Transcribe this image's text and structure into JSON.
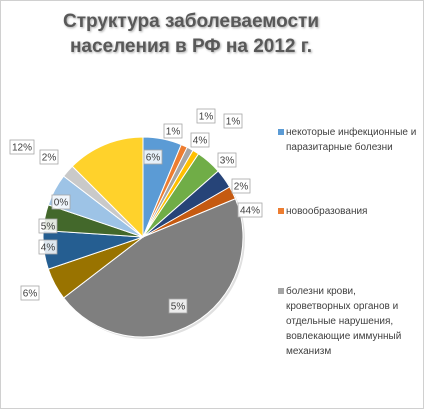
{
  "chart_data": {
    "type": "pie",
    "title_lines": [
      "Структура заболеваемости",
      "населения в РФ на 2012 г."
    ],
    "slices": [
      {
        "label": "6%",
        "value": 6,
        "color": "#5b9bd5"
      },
      {
        "label": "1%",
        "value": 1,
        "color": "#ed7d31"
      },
      {
        "label": "1%",
        "value": 1,
        "color": "#a5a5a5"
      },
      {
        "label": "1%",
        "value": 1,
        "color": "#ffc000"
      },
      {
        "label": "4%",
        "value": 4,
        "color": "#70ad47"
      },
      {
        "label": "3%",
        "value": 3,
        "color": "#264478"
      },
      {
        "label": "2%",
        "value": 2,
        "color": "#c55a11"
      },
      {
        "label": "44%",
        "value": 44,
        "color": "#7f7f7f"
      },
      {
        "label": "5%",
        "value": 5,
        "color": "#997300"
      },
      {
        "label": "6%",
        "value": 6,
        "color": "#255e91"
      },
      {
        "label": "4%",
        "value": 4,
        "color": "#43682b"
      },
      {
        "label": "5%",
        "value": 5,
        "color": "#9dc3e6"
      },
      {
        "label": "0%",
        "value": 0,
        "color": "#f4b183"
      },
      {
        "label": "2%",
        "value": 2,
        "color": "#c9c9c9"
      },
      {
        "label": "12%",
        "value": 12,
        "color": "#ffd22b"
      }
    ],
    "legend": [
      {
        "text": "некоторые инфекционные и паразитарные болезни",
        "color": "#5b9bd5"
      },
      {
        "text": "новообразования",
        "color": "#ed7d31"
      },
      {
        "text": "болезни крови, кроветворных органов и отдельные нарушения, вовлекающие иммунный механизм",
        "color": "#a5a5a5"
      }
    ],
    "legend_placement": "right"
  }
}
